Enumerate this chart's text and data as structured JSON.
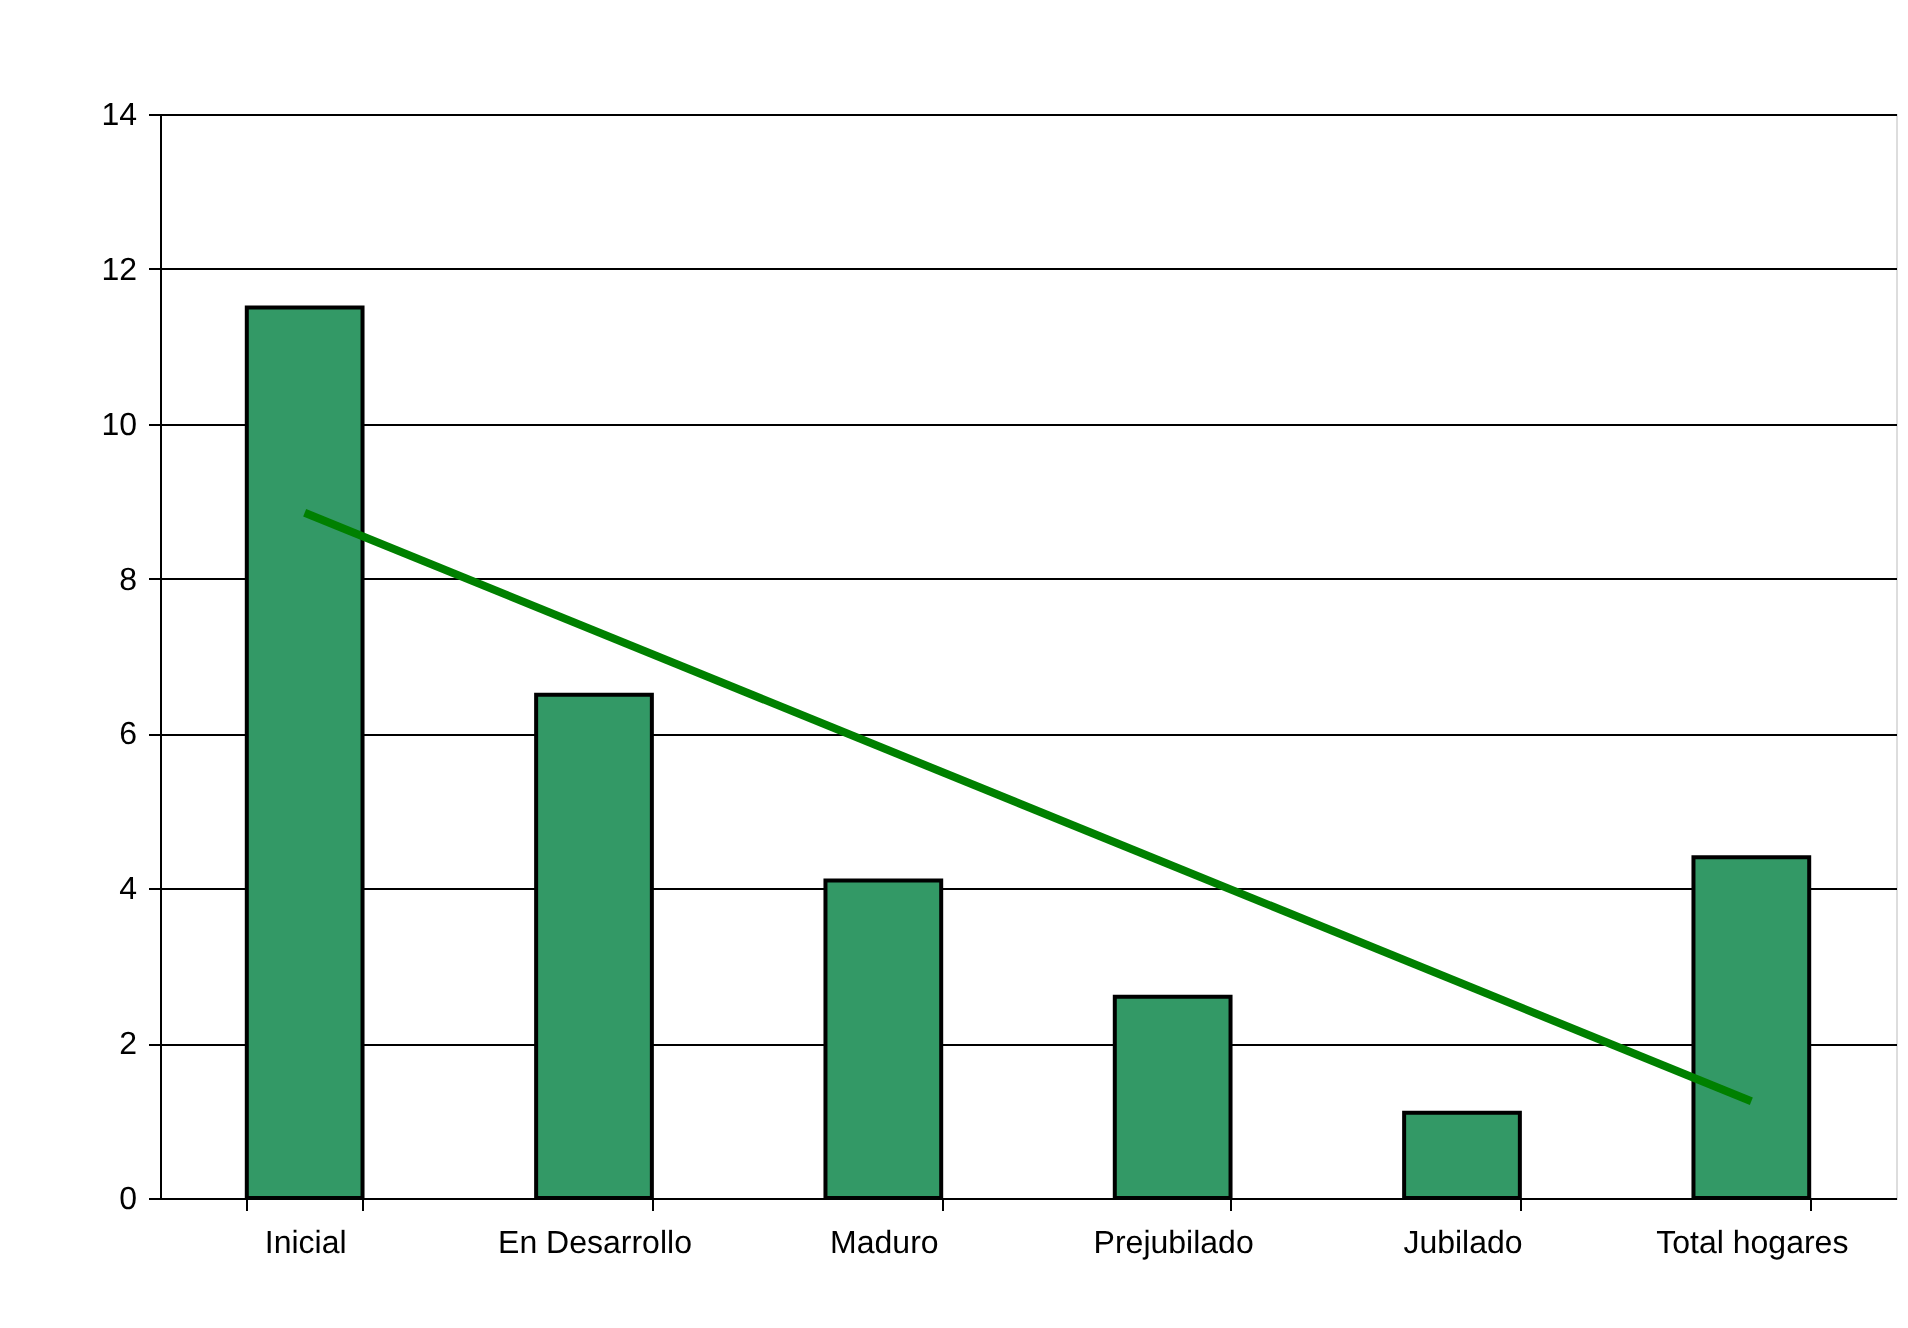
{
  "chart_data": {
    "type": "bar",
    "categories": [
      "Inicial",
      "En Desarrollo",
      "Maduro",
      "Prejubilado",
      "Jubilado",
      "Total hogares"
    ],
    "series": [
      {
        "color": "#339966",
        "values": [
          11.5,
          6.5,
          4.1,
          2.6,
          1.1,
          4.4
        ]
      },
      {
        "type": "line",
        "color": "#008000",
        "x": [
          "Inicial",
          "Total hogares"
        ],
        "values": [
          8.85,
          1.25
        ]
      }
    ],
    "ylim": [
      0,
      14
    ],
    "yticks": [
      0,
      2,
      4,
      6,
      8,
      10,
      12,
      14
    ],
    "grid": "y"
  }
}
